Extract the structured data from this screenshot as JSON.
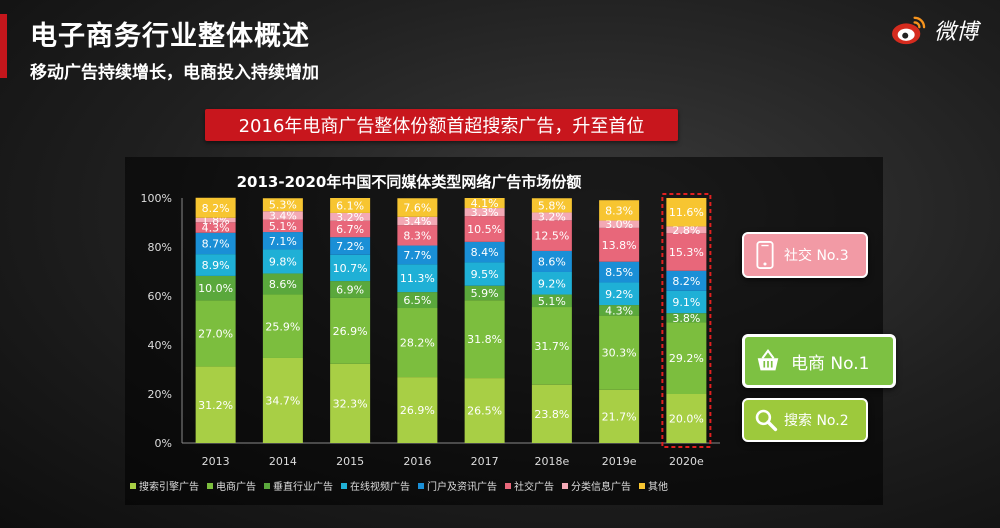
{
  "header": {
    "title": "电子商务行业整体概述",
    "subtitle": "移动广告持续增长，电商投入持续增加",
    "brand_name": "微博",
    "accent_color": "#c4161c"
  },
  "banner": {
    "text": "2016年电商广告整体份额首超搜索广告，升至首位"
  },
  "callouts": {
    "social": {
      "label": "社交 No.3",
      "icon": "phone-icon",
      "color": "#f29aa5"
    },
    "ecom": {
      "label": "电商 No.1",
      "icon": "shopping-basket-icon",
      "color": "#7dc142"
    },
    "search": {
      "label": "搜索 No.2",
      "icon": "magnifier-icon",
      "color": "#9dc93c"
    }
  },
  "chart_data": {
    "type": "bar",
    "stacked": true,
    "title": "2013-2020年中国不同媒体类型网络广告市场份额",
    "categories": [
      "2013",
      "2014",
      "2015",
      "2016",
      "2017",
      "2018e",
      "2019e",
      "2020e"
    ],
    "highlight_category": "2020e",
    "ylim": [
      0,
      100
    ],
    "yticks": [
      "0%",
      "20%",
      "40%",
      "60%",
      "80%",
      "100%"
    ],
    "grid": false,
    "legend_position": "bottom",
    "series": [
      {
        "name": "搜索引擎广告",
        "color": "#a8cf45",
        "values": [
          31.2,
          34.7,
          32.3,
          26.9,
          26.5,
          23.8,
          21.7,
          20.0
        ],
        "labels": [
          "31.2%",
          "34.7%",
          "32.3%",
          "26.9%",
          "26.5%",
          "23.8%",
          "21.7%",
          "20.0%"
        ]
      },
      {
        "name": "电商广告",
        "color": "#7cbe3e",
        "values": [
          27.0,
          25.9,
          26.9,
          28.2,
          31.8,
          31.7,
          30.3,
          29.2
        ],
        "labels": [
          "27.0%",
          "25.9%",
          "26.9%",
          "28.2%",
          "31.8%",
          "31.7%",
          "30.3%",
          "29.2%"
        ]
      },
      {
        "name": "垂直行业广告",
        "color": "#5aa83c",
        "values": [
          10.0,
          8.6,
          6.9,
          6.5,
          5.9,
          5.1,
          4.3,
          3.8
        ],
        "labels": [
          "10.0%",
          "8.6%",
          "6.9%",
          "6.5%",
          "5.9%",
          "5.1%",
          "4.3%",
          "3.8%"
        ]
      },
      {
        "name": "在线视频广告",
        "color": "#1fb0d6",
        "values": [
          8.9,
          9.8,
          10.7,
          11.3,
          9.5,
          9.2,
          9.2,
          9.1
        ],
        "labels": [
          "8.9%",
          "9.8%",
          "10.7%",
          "11.3%",
          "9.5%",
          "9.2%",
          "9.2%",
          "9.1%"
        ]
      },
      {
        "name": "门户及资讯广告",
        "color": "#1a8fd6",
        "values": [
          8.7,
          7.1,
          7.2,
          7.7,
          8.4,
          8.6,
          8.5,
          8.2
        ],
        "labels": [
          "8.7%",
          "7.1%",
          "7.2%",
          "7.7%",
          "8.4%",
          "8.6%",
          "8.5%",
          "8.2%"
        ]
      },
      {
        "name": "社交广告",
        "color": "#e8677a",
        "values": [
          4.3,
          5.1,
          6.7,
          8.3,
          10.5,
          12.5,
          13.8,
          15.3
        ],
        "labels": [
          "4.3%",
          "5.1%",
          "6.7%",
          "8.3%",
          "10.5%",
          "12.5%",
          "13.8%",
          "15.3%"
        ]
      },
      {
        "name": "分类信息广告",
        "color": "#f3a9b5",
        "values": [
          1.8,
          3.4,
          3.2,
          3.4,
          3.3,
          3.2,
          3.0,
          2.8
        ],
        "labels": [
          "1.8%",
          "3.4%",
          "3.2%",
          "3.4%",
          "3.3%",
          "3.2%",
          "3.0%",
          "2.8%"
        ]
      },
      {
        "name": "其他",
        "color": "#f7c531",
        "values": [
          8.2,
          5.3,
          6.1,
          7.6,
          4.1,
          5.8,
          8.3,
          11.6
        ],
        "labels": [
          "8.2%",
          "5.3%",
          "6.1%",
          "7.6%",
          "4.1%",
          "5.8%",
          "8.3%",
          "11.6%"
        ]
      }
    ]
  }
}
